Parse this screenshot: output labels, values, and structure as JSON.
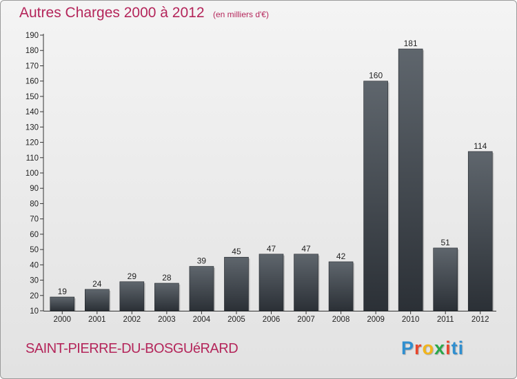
{
  "header": {
    "title": "Autres Charges 2000 à 2012",
    "unit": "(en milliers d'€)"
  },
  "footer": {
    "place": "SAINT-PIERRE-DU-BOSGUéRARD",
    "logo_letters": [
      "P",
      "r",
      "o",
      "x",
      "i",
      "ti"
    ]
  },
  "colors": {
    "title": "#b4255a",
    "bar_top": "#5f666d",
    "bar_bottom": "#2b3036"
  },
  "chart_data": {
    "type": "bar",
    "title": "Autres Charges 2000 à 2012",
    "subtitle": "(en milliers d'€)",
    "categories": [
      "2000",
      "2001",
      "2002",
      "2003",
      "2004",
      "2005",
      "2006",
      "2007",
      "2008",
      "2009",
      "2010",
      "2011",
      "2012"
    ],
    "values": [
      19,
      24,
      29,
      28,
      39,
      45,
      47,
      47,
      42,
      160,
      181,
      51,
      114
    ],
    "ylim": [
      10,
      190
    ],
    "yticks": [
      10,
      20,
      30,
      40,
      50,
      60,
      70,
      80,
      90,
      100,
      110,
      120,
      130,
      140,
      150,
      160,
      170,
      180,
      190
    ],
    "grid": false,
    "legend": "none"
  }
}
